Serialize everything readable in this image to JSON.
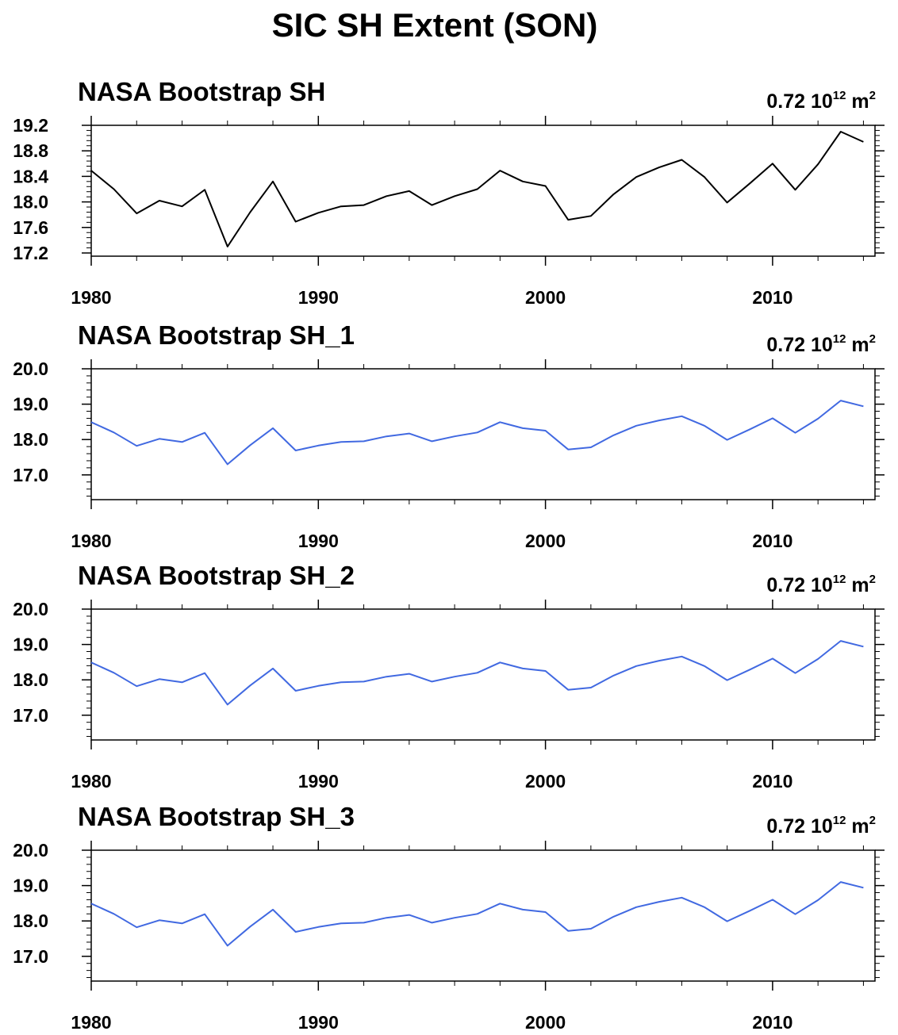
{
  "figure": {
    "title": "SIC SH Extent (SON)"
  },
  "chart_data": [
    {
      "type": "line",
      "title": "NASA Bootstrap SH",
      "annotation": {
        "value": "0.72",
        "base": "10",
        "exponent": "12",
        "unit": "m",
        "unit_exponent": "2"
      },
      "line_color": "#000000",
      "x": [
        1980,
        1981,
        1982,
        1983,
        1984,
        1985,
        1986,
        1987,
        1988,
        1989,
        1990,
        1991,
        1992,
        1993,
        1994,
        1995,
        1996,
        1997,
        1998,
        1999,
        2000,
        2001,
        2002,
        2003,
        2004,
        2005,
        2006,
        2007,
        2008,
        2009,
        2010,
        2011,
        2012,
        2013,
        2014
      ],
      "values": [
        18.49,
        18.2,
        17.82,
        18.02,
        17.93,
        18.19,
        17.3,
        17.84,
        18.32,
        17.69,
        17.83,
        17.93,
        17.95,
        18.09,
        18.17,
        17.95,
        18.09,
        18.2,
        18.49,
        18.32,
        18.25,
        17.72,
        17.78,
        18.12,
        18.39,
        18.54,
        18.66,
        18.39,
        17.99,
        18.29,
        18.6,
        18.19,
        18.59,
        19.1,
        18.94
      ],
      "xlim": [
        1980,
        2014.5
      ],
      "ylim": [
        17.15,
        19.2
      ],
      "yticks": [
        17.2,
        17.6,
        18.0,
        18.4,
        18.8,
        19.2
      ],
      "yticklabels": [
        "17.2",
        "17.6",
        "18.0",
        "18.4",
        "18.8",
        "19.2"
      ],
      "xticks": [
        1980,
        1990,
        2000,
        2010
      ],
      "xticklabels": [
        "1980",
        "1990",
        "2000",
        "2010"
      ]
    },
    {
      "type": "line",
      "title": "NASA Bootstrap SH_1",
      "annotation": {
        "value": "0.72",
        "base": "10",
        "exponent": "12",
        "unit": "m",
        "unit_exponent": "2"
      },
      "line_color": "#4169e1",
      "x": [
        1980,
        1981,
        1982,
        1983,
        1984,
        1985,
        1986,
        1987,
        1988,
        1989,
        1990,
        1991,
        1992,
        1993,
        1994,
        1995,
        1996,
        1997,
        1998,
        1999,
        2000,
        2001,
        2002,
        2003,
        2004,
        2005,
        2006,
        2007,
        2008,
        2009,
        2010,
        2011,
        2012,
        2013,
        2014
      ],
      "values": [
        18.49,
        18.2,
        17.82,
        18.02,
        17.93,
        18.19,
        17.3,
        17.84,
        18.32,
        17.69,
        17.83,
        17.93,
        17.95,
        18.09,
        18.17,
        17.95,
        18.09,
        18.2,
        18.49,
        18.32,
        18.25,
        17.72,
        17.78,
        18.12,
        18.39,
        18.54,
        18.66,
        18.39,
        17.99,
        18.29,
        18.6,
        18.19,
        18.59,
        19.1,
        18.94
      ],
      "xlim": [
        1980,
        2014.5
      ],
      "ylim": [
        16.3,
        20.0
      ],
      "yticks": [
        17.0,
        18.0,
        19.0,
        20.0
      ],
      "yticklabels": [
        "17.0",
        "18.0",
        "19.0",
        "20.0"
      ],
      "xticks": [
        1980,
        1990,
        2000,
        2010
      ],
      "xticklabels": [
        "1980",
        "1990",
        "2000",
        "2010"
      ]
    },
    {
      "type": "line",
      "title": "NASA Bootstrap SH_2",
      "annotation": {
        "value": "0.72",
        "base": "10",
        "exponent": "12",
        "unit": "m",
        "unit_exponent": "2"
      },
      "line_color": "#4169e1",
      "x": [
        1980,
        1981,
        1982,
        1983,
        1984,
        1985,
        1986,
        1987,
        1988,
        1989,
        1990,
        1991,
        1992,
        1993,
        1994,
        1995,
        1996,
        1997,
        1998,
        1999,
        2000,
        2001,
        2002,
        2003,
        2004,
        2005,
        2006,
        2007,
        2008,
        2009,
        2010,
        2011,
        2012,
        2013,
        2014
      ],
      "values": [
        18.49,
        18.2,
        17.82,
        18.02,
        17.93,
        18.19,
        17.3,
        17.84,
        18.32,
        17.69,
        17.83,
        17.93,
        17.95,
        18.09,
        18.17,
        17.95,
        18.09,
        18.2,
        18.49,
        18.32,
        18.25,
        17.72,
        17.78,
        18.12,
        18.39,
        18.54,
        18.66,
        18.39,
        17.99,
        18.29,
        18.6,
        18.19,
        18.59,
        19.1,
        18.94
      ],
      "xlim": [
        1980,
        2014.5
      ],
      "ylim": [
        16.3,
        20.0
      ],
      "yticks": [
        17.0,
        18.0,
        19.0,
        20.0
      ],
      "yticklabels": [
        "17.0",
        "18.0",
        "19.0",
        "20.0"
      ],
      "xticks": [
        1980,
        1990,
        2000,
        2010
      ],
      "xticklabels": [
        "1980",
        "1990",
        "2000",
        "2010"
      ]
    },
    {
      "type": "line",
      "title": "NASA Bootstrap SH_3",
      "annotation": {
        "value": "0.72",
        "base": "10",
        "exponent": "12",
        "unit": "m",
        "unit_exponent": "2"
      },
      "line_color": "#4169e1",
      "x": [
        1980,
        1981,
        1982,
        1983,
        1984,
        1985,
        1986,
        1987,
        1988,
        1989,
        1990,
        1991,
        1992,
        1993,
        1994,
        1995,
        1996,
        1997,
        1998,
        1999,
        2000,
        2001,
        2002,
        2003,
        2004,
        2005,
        2006,
        2007,
        2008,
        2009,
        2010,
        2011,
        2012,
        2013,
        2014
      ],
      "values": [
        18.49,
        18.2,
        17.82,
        18.02,
        17.93,
        18.19,
        17.3,
        17.84,
        18.32,
        17.69,
        17.83,
        17.93,
        17.95,
        18.09,
        18.17,
        17.95,
        18.09,
        18.2,
        18.49,
        18.32,
        18.25,
        17.72,
        17.78,
        18.12,
        18.39,
        18.54,
        18.66,
        18.39,
        17.99,
        18.29,
        18.6,
        18.19,
        18.59,
        19.1,
        18.94
      ],
      "xlim": [
        1980,
        2014.5
      ],
      "ylim": [
        16.3,
        20.0
      ],
      "yticks": [
        17.0,
        18.0,
        19.0,
        20.0
      ],
      "yticklabels": [
        "17.0",
        "18.0",
        "19.0",
        "20.0"
      ],
      "xticks": [
        1980,
        1990,
        2000,
        2010
      ],
      "xticklabels": [
        "1980",
        "1990",
        "2000",
        "2010"
      ]
    }
  ]
}
